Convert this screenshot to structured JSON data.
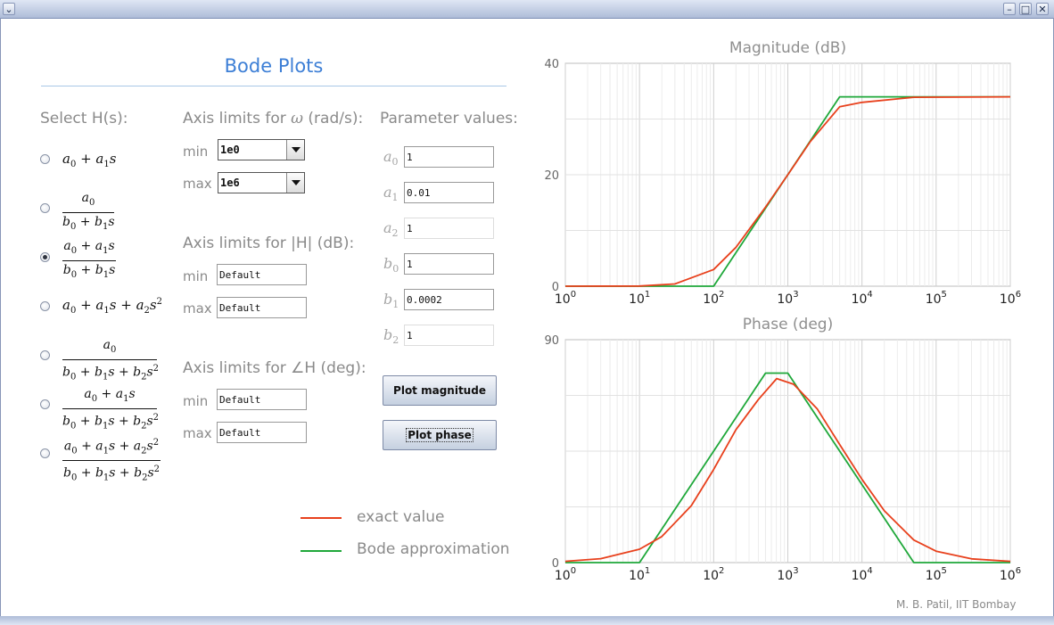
{
  "window": {
    "controls": {
      "menu": "⌄",
      "minimize": "–",
      "maximize": "□",
      "close": "✕"
    }
  },
  "app_title": "Bode Plots",
  "select": {
    "title": "Select H(s):",
    "selected_index": 2,
    "options": [
      {
        "label": "a0 + a1 s"
      },
      {
        "label": "a0 / (b0 + b1 s)"
      },
      {
        "label": "(a0 + a1 s) / (b0 + b1 s)"
      },
      {
        "label": "a0 + a1 s + a2 s^2"
      },
      {
        "label": "a0 / (b0 + b1 s + b2 s^2)"
      },
      {
        "label": "(a0 + a1 s) / (b0 + b1 s + b2 s^2)"
      },
      {
        "label": "(a0 + a1 s + a2 s^2) / (b0 + b1 s + b2 s^2)"
      }
    ]
  },
  "omega_axis": {
    "title_prefix": "Axis limits for",
    "title_symbol": "ω",
    "title_suffix": "(rad/s):",
    "min_label": "min",
    "min_value": "1e0",
    "max_label": "max",
    "max_value": "1e6"
  },
  "mag_axis": {
    "title": "Axis limits for |H| (dB):",
    "min_label": "min",
    "min_value": "Default",
    "max_label": "max",
    "max_value": "Default"
  },
  "phase_axis": {
    "title": "Axis limits for ∠H (deg):",
    "min_label": "min",
    "min_value": "Default",
    "max_label": "max",
    "max_value": "Default"
  },
  "params": {
    "title": "Parameter values:",
    "items": [
      {
        "sym": "a",
        "sub": "0",
        "value": "1",
        "enabled": true
      },
      {
        "sym": "a",
        "sub": "1",
        "value": "0.01",
        "enabled": true
      },
      {
        "sym": "a",
        "sub": "2",
        "value": "1",
        "enabled": false
      },
      {
        "sym": "b",
        "sub": "0",
        "value": "1",
        "enabled": true
      },
      {
        "sym": "b",
        "sub": "1",
        "value": "0.0002",
        "enabled": true
      },
      {
        "sym": "b",
        "sub": "2",
        "value": "1",
        "enabled": false
      }
    ]
  },
  "buttons": {
    "plot_magnitude": "Plot magnitude",
    "plot_phase": "Plot phase"
  },
  "legend": {
    "exact": {
      "label": "exact value",
      "color": "#e8401c"
    },
    "approx": {
      "label": "Bode approximation",
      "color": "#1fa83a"
    }
  },
  "credit": "M. B. Patil, IIT Bombay",
  "chart_data": [
    {
      "type": "line",
      "title": "Magnitude (dB)",
      "x_scale": "log",
      "xlim": [
        1,
        1000000
      ],
      "ylim": [
        0,
        40
      ],
      "y_ticks": [
        0,
        20,
        40
      ],
      "x_tick_exponents": [
        0,
        1,
        2,
        3,
        4,
        5,
        6
      ],
      "grid": true,
      "series": [
        {
          "role": "exact",
          "color": "#e8401c",
          "x": [
            1,
            10,
            30,
            100,
            200,
            500,
            1000,
            2000,
            5000,
            10000,
            50000,
            1000000
          ],
          "y": [
            0,
            0.04,
            0.4,
            3.0,
            7.0,
            14.2,
            20.0,
            25.9,
            32.2,
            33.0,
            33.9,
            33.98
          ]
        },
        {
          "role": "approx",
          "color": "#1fa83a",
          "x": [
            1,
            100,
            5000,
            1000000
          ],
          "y": [
            0,
            0,
            33.98,
            33.98
          ]
        }
      ]
    },
    {
      "type": "line",
      "title": "Phase (deg)",
      "x_scale": "log",
      "xlim": [
        1,
        1000000
      ],
      "ylim": [
        0,
        90
      ],
      "y_ticks": [
        0,
        90
      ],
      "x_tick_exponents": [
        0,
        1,
        2,
        3,
        4,
        5,
        6
      ],
      "grid": true,
      "series": [
        {
          "role": "exact",
          "color": "#e8401c",
          "x": [
            1,
            3,
            10,
            20,
            50,
            100,
            200,
            400,
            707,
            1200,
            2500,
            5000,
            10000,
            20000,
            50000,
            100000,
            300000,
            1000000
          ],
          "y": [
            0.5,
            1.6,
            5.4,
            10.5,
            23.0,
            37.6,
            53.7,
            65.8,
            74.3,
            72.0,
            62.0,
            47.7,
            33.6,
            20.9,
            9.1,
            4.6,
            1.5,
            0.5
          ]
        },
        {
          "role": "approx",
          "color": "#1fa83a",
          "x": [
            1,
            10,
            500,
            1000,
            50000,
            1000000
          ],
          "y": [
            0,
            0,
            76.5,
            76.5,
            0,
            0
          ]
        }
      ]
    }
  ]
}
